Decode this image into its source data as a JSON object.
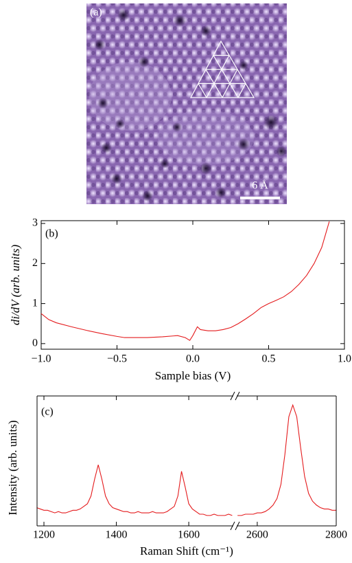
{
  "image_panel": {
    "label": "(a)",
    "scale_label": "6 Å"
  },
  "chart_data": [
    {
      "type": "line",
      "label": "(b)",
      "x_label": "Sample bias (V)",
      "y_label": "di/dV (arb. units)",
      "color": "#e41a1c",
      "xlim": [
        -1,
        1
      ],
      "ylim": [
        -0.14,
        3.07
      ],
      "xticks": [
        {
          "value": -1,
          "label": "−1.0"
        },
        {
          "value": -0.5,
          "label": "−0.5"
        },
        {
          "value": 0,
          "label": "0.0"
        },
        0.5,
        {
          "value": 1,
          "label": "1.0"
        }
      ],
      "yticks": [
        0,
        1,
        2,
        3
      ],
      "x": [
        -1.0,
        -0.95,
        -0.9,
        -0.8,
        -0.7,
        -0.6,
        -0.5,
        -0.45,
        -0.4,
        -0.3,
        -0.2,
        -0.1,
        -0.05,
        -0.02,
        0.0,
        0.03,
        0.05,
        0.1,
        0.15,
        0.2,
        0.25,
        0.3,
        0.35,
        0.4,
        0.45,
        0.5,
        0.55,
        0.6,
        0.65,
        0.7,
        0.75,
        0.8,
        0.85,
        0.9
      ],
      "values": [
        0.75,
        0.6,
        0.52,
        0.42,
        0.33,
        0.25,
        0.18,
        0.15,
        0.15,
        0.15,
        0.17,
        0.2,
        0.15,
        0.08,
        0.2,
        0.42,
        0.35,
        0.32,
        0.32,
        0.35,
        0.4,
        0.5,
        0.62,
        0.75,
        0.9,
        1.0,
        1.08,
        1.17,
        1.3,
        1.48,
        1.7,
        2.0,
        2.4,
        3.05
      ]
    },
    {
      "type": "broken-line",
      "label": "(c)",
      "x_label": "Raman Shift (cm⁻¹)",
      "y_label": "Intensity (arb. units)",
      "color": "#e41a1c",
      "ylim": [
        0,
        1
      ],
      "segments": [
        {
          "xlim": [
            1181,
            1723
          ],
          "xticks": [
            1200,
            1400,
            1600
          ],
          "x": [
            1180,
            1190,
            1200,
            1210,
            1220,
            1230,
            1240,
            1250,
            1260,
            1270,
            1280,
            1290,
            1300,
            1310,
            1320,
            1330,
            1340,
            1350,
            1360,
            1370,
            1380,
            1390,
            1400,
            1410,
            1420,
            1430,
            1440,
            1450,
            1460,
            1470,
            1480,
            1490,
            1500,
            1510,
            1520,
            1530,
            1540,
            1550,
            1560,
            1570,
            1580,
            1590,
            1600,
            1610,
            1620,
            1630,
            1640,
            1650,
            1660,
            1670,
            1680,
            1690,
            1700,
            1710,
            1720
          ],
          "values": [
            0.14,
            0.13,
            0.12,
            0.12,
            0.11,
            0.1,
            0.11,
            0.1,
            0.1,
            0.11,
            0.12,
            0.12,
            0.13,
            0.15,
            0.17,
            0.23,
            0.36,
            0.47,
            0.36,
            0.23,
            0.17,
            0.14,
            0.13,
            0.12,
            0.11,
            0.11,
            0.1,
            0.1,
            0.11,
            0.1,
            0.1,
            0.1,
            0.11,
            0.1,
            0.1,
            0.1,
            0.11,
            0.13,
            0.15,
            0.23,
            0.42,
            0.3,
            0.17,
            0.13,
            0.11,
            0.09,
            0.09,
            0.08,
            0.08,
            0.09,
            0.08,
            0.08,
            0.08,
            0.09,
            0.08
          ]
        },
        {
          "xlim": [
            2548,
            2800
          ],
          "xticks": [
            2600,
            2800
          ],
          "x": [
            2550,
            2560,
            2570,
            2580,
            2590,
            2600,
            2610,
            2620,
            2630,
            2640,
            2650,
            2660,
            2670,
            2680,
            2690,
            2700,
            2710,
            2720,
            2730,
            2740,
            2750,
            2760,
            2770,
            2780,
            2790,
            2800
          ],
          "values": [
            0.08,
            0.08,
            0.09,
            0.09,
            0.09,
            0.1,
            0.1,
            0.11,
            0.13,
            0.16,
            0.21,
            0.32,
            0.55,
            0.84,
            0.93,
            0.84,
            0.6,
            0.38,
            0.25,
            0.19,
            0.16,
            0.14,
            0.13,
            0.13,
            0.12,
            0.12
          ]
        }
      ]
    }
  ]
}
